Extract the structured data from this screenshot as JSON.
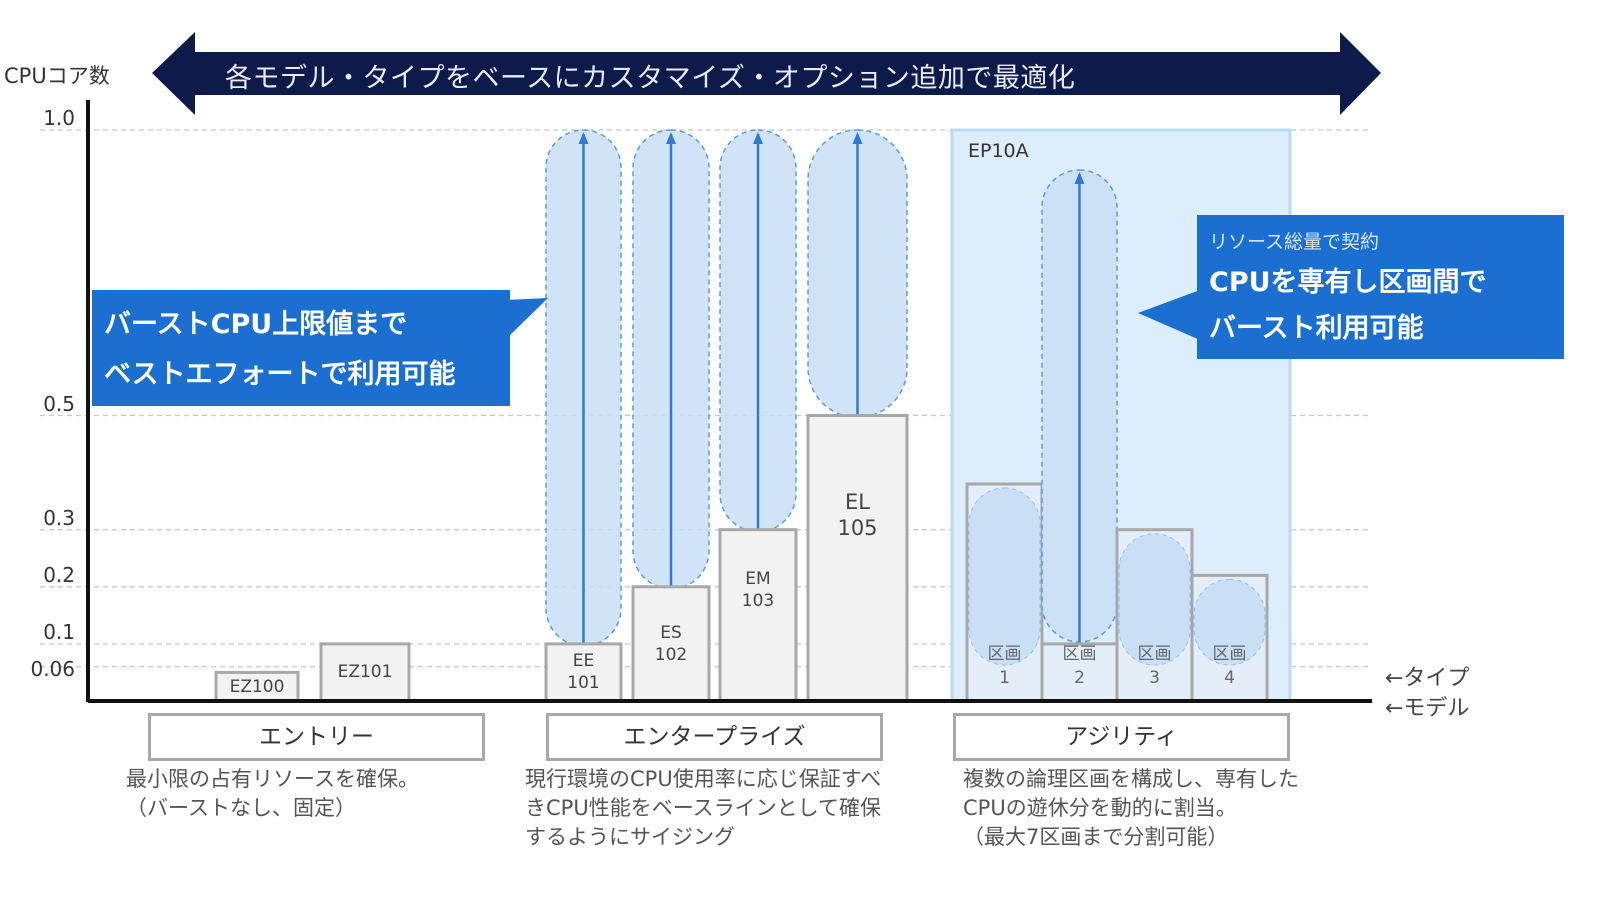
{
  "y_axis": {
    "label": "CPUコア数",
    "ticks": [
      1.0,
      0.5,
      0.3,
      0.2,
      0.1,
      0.06
    ],
    "tick_labels": [
      "1.0",
      "0.5",
      "0.3",
      "0.2",
      "0.1",
      "0.06"
    ],
    "range": [
      0,
      1.0
    ]
  },
  "banner": {
    "text": "各モデル・タイプをベースにカスタマイズ・オプション追加で最適化",
    "color": "#0d1a4a"
  },
  "callouts": {
    "left": {
      "lines": [
        "バーストCPU上限値まで",
        "ベストエフォートで利用可能"
      ]
    },
    "right": {
      "small": "リソース総量で契約",
      "lines": [
        "CPUを専有し区画間で",
        "バースト利用可能"
      ]
    },
    "color": "#1a6fd1"
  },
  "models": [
    {
      "name": "EZ100",
      "label": [
        "EZ100"
      ],
      "cpu": 0.05,
      "burst": null
    },
    {
      "name": "EZ101",
      "label": [
        "EZ101"
      ],
      "cpu": 0.1,
      "burst": null
    },
    {
      "name": "EE101",
      "label": [
        "EE",
        "101"
      ],
      "cpu": 0.1,
      "burst": 1.0
    },
    {
      "name": "ES102",
      "label": [
        "ES",
        "102"
      ],
      "cpu": 0.2,
      "burst": 1.0
    },
    {
      "name": "EM103",
      "label": [
        "EM",
        "103"
      ],
      "cpu": 0.3,
      "burst": 1.0
    },
    {
      "name": "EL105",
      "label": [
        "EL",
        "105"
      ],
      "cpu": 0.5,
      "burst": 1.0
    }
  ],
  "agility": {
    "model": "EP10A",
    "total": 1.0,
    "partitions": [
      {
        "label": [
          "区画",
          "1"
        ],
        "cpu": 0.38,
        "burst": null
      },
      {
        "label": [
          "区画",
          "2"
        ],
        "cpu": 0.1,
        "burst": 0.93
      },
      {
        "label": [
          "区画",
          "3"
        ],
        "cpu": 0.3,
        "burst": null
      },
      {
        "label": [
          "区画",
          "4"
        ],
        "cpu": 0.22,
        "burst": null
      }
    ]
  },
  "legend": {
    "type": "←タイプ",
    "model": "←モデル"
  },
  "categories": [
    {
      "name": "エントリー",
      "desc": [
        "最小限の占有リソースを確保。",
        "（バーストなし、固定）"
      ]
    },
    {
      "name": "エンタープライズ",
      "desc": [
        "現行環境のCPU使用率に応じ保証すべ",
        "きCPU性能をベースラインとして確保",
        "するようにサイジング"
      ]
    },
    {
      "name": "アジリティ",
      "desc": [
        "複数の論理区画を構成し、専有した",
        "CPUの遊休分を動的に割当。",
        "（最大7区画まで分割可能）"
      ]
    }
  ]
}
